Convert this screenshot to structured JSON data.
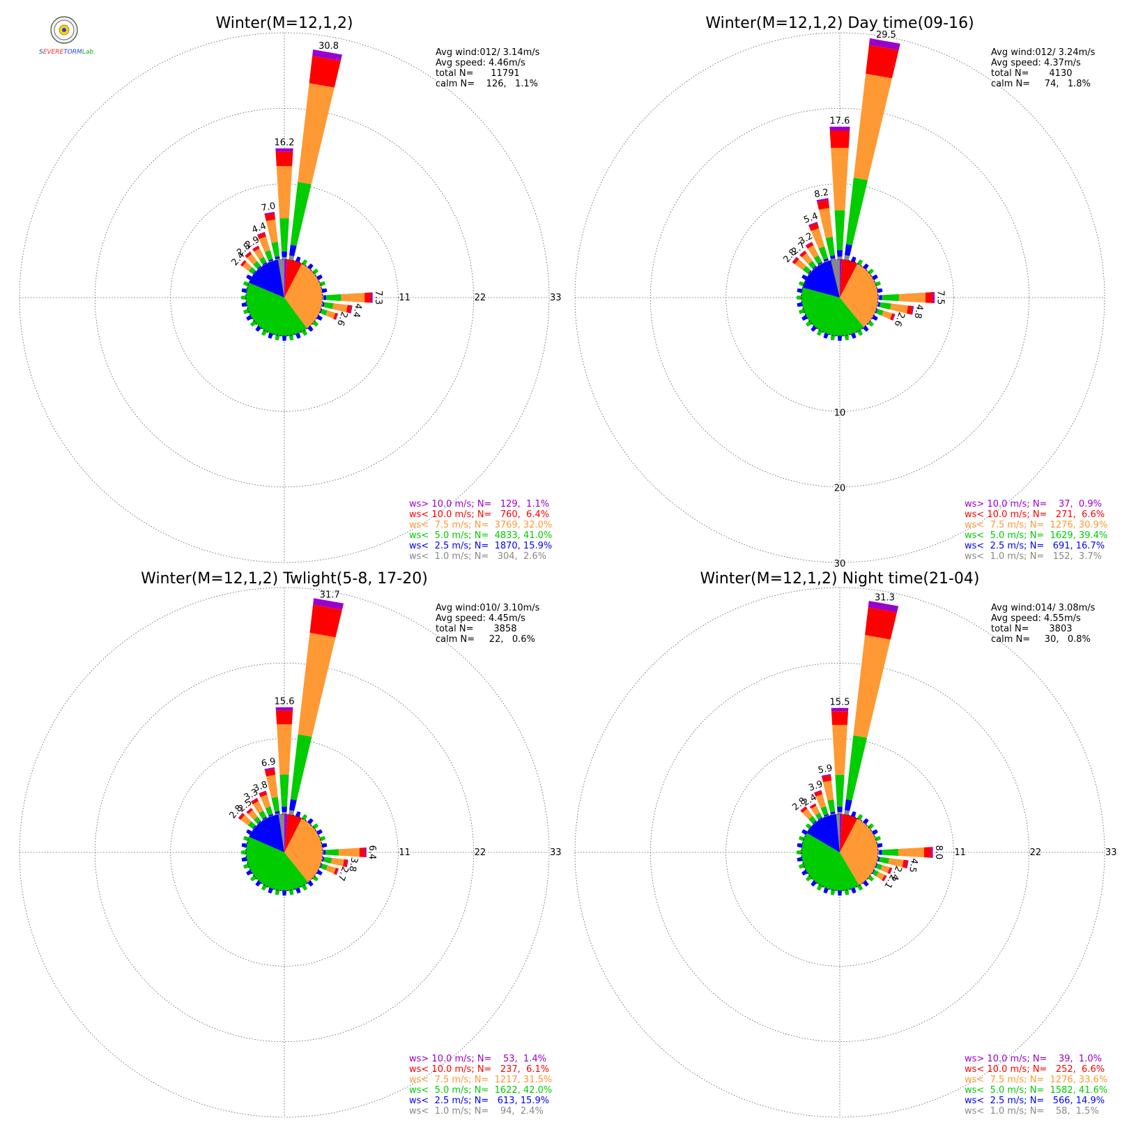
{
  "logo": {
    "parts": [
      {
        "text": "S",
        "color": "#1e3cff"
      },
      {
        "text": "EVERE",
        "color": "#ff2a1e"
      },
      {
        "text": "TORM",
        "color": "#1e3cff"
      },
      {
        "text": "Lab.",
        "color": "#18a818"
      }
    ]
  },
  "speed_colors": {
    "gt10": "#9900cc",
    "lt10": "#ff0000",
    "lt7_5": "#ff9933",
    "lt5": "#00cc00",
    "lt2_5": "#0000ff",
    "lt1": "#888888"
  },
  "chart_data": [
    {
      "type": "wind_rose",
      "title": "Winter(M=12,1,2)",
      "stats": [
        "Avg wind:012/ 3.14m/s",
        "Avg speed: 4.46m/s",
        "total N=      11791",
        "calm N=    126,   1.1%"
      ],
      "ring_labels": [
        "11",
        "22",
        "33"
      ],
      "ring_axis": "horizontal",
      "rmax": 33,
      "legend": [
        {
          "text": "ws> 10.0 m/s; N=   129,  1.1%",
          "color": "#9900cc"
        },
        {
          "text": "ws< 10.0 m/s; N=   760,  6.4%",
          "color": "#ff0000"
        },
        {
          "text": "ws<  7.5 m/s; N=  3769, 32.0%",
          "color": "#ff9933"
        },
        {
          "text": "ws<  5.0 m/s; N=  4833, 41.0%",
          "color": "#00cc00"
        },
        {
          "text": "ws<  2.5 m/s; N=  1870, 15.9%",
          "color": "#0000ff"
        },
        {
          "text": "ws<  1.0 m/s; N=   304,  2.6%",
          "color": "#888888"
        }
      ],
      "pie": [
        2.6,
        15.9,
        41.0,
        32.0,
        6.4,
        1.1
      ],
      "bars": [
        {
          "dir": 0,
          "total": 16.2,
          "label": "16.2"
        },
        {
          "dir": 10,
          "total": 30.8,
          "label": "30.8"
        },
        {
          "dir": -10,
          "total": 7.0,
          "label": "7.0"
        },
        {
          "dir": -20,
          "total": 4.4,
          "label": "4.4"
        },
        {
          "dir": -30,
          "total": 2.9,
          "label": "2.9"
        },
        {
          "dir": -40,
          "total": 2.8,
          "label": "2.8"
        },
        {
          "dir": -50,
          "total": 2.4,
          "label": "2.4"
        },
        {
          "dir": 90,
          "total": 7.3,
          "label": "7.3"
        },
        {
          "dir": 100,
          "total": 4.4,
          "label": "4.4"
        },
        {
          "dir": 110,
          "total": 2.6,
          "label": "2.6"
        }
      ]
    },
    {
      "type": "wind_rose",
      "title": "Winter(M=12,1,2) Day time(09-16)",
      "stats": [
        "Avg wind:012/ 3.24m/s",
        "Avg speed: 4.37m/s",
        "total N=       4130",
        "calm N=     74,   1.8%"
      ],
      "ring_labels": [
        "10",
        "20",
        "30"
      ],
      "ring_axis": "vertical",
      "rmax": 30,
      "legend": [
        {
          "text": "ws> 10.0 m/s; N=    37,  0.9%",
          "color": "#9900cc"
        },
        {
          "text": "ws< 10.0 m/s; N=   271,  6.6%",
          "color": "#ff0000"
        },
        {
          "text": "ws<  7.5 m/s; N=  1276, 30.9%",
          "color": "#ff9933"
        },
        {
          "text": "ws<  5.0 m/s; N=  1629, 39.4%",
          "color": "#00cc00"
        },
        {
          "text": "ws<  2.5 m/s; N=   691, 16.7%",
          "color": "#0000ff"
        },
        {
          "text": "ws<  1.0 m/s; N=   152,  3.7%",
          "color": "#888888"
        }
      ],
      "pie": [
        3.7,
        16.7,
        39.4,
        30.9,
        6.6,
        0.9
      ],
      "bars": [
        {
          "dir": 0,
          "total": 17.6,
          "label": "17.6"
        },
        {
          "dir": 10,
          "total": 29.5,
          "label": "29.5"
        },
        {
          "dir": -10,
          "total": 8.2,
          "label": "8.2"
        },
        {
          "dir": -20,
          "total": 5.4,
          "label": "5.4"
        },
        {
          "dir": -30,
          "total": 3.2,
          "label": "3.2"
        },
        {
          "dir": -40,
          "total": 2.7,
          "label": "2.7"
        },
        {
          "dir": -50,
          "total": 2.8,
          "label": "2.8"
        },
        {
          "dir": 90,
          "total": 7.5,
          "label": "7.5"
        },
        {
          "dir": 100,
          "total": 4.8,
          "label": "4.8"
        },
        {
          "dir": 110,
          "total": 2.6,
          "label": "2.6"
        }
      ]
    },
    {
      "type": "wind_rose",
      "title": "Winter(M=12,1,2) Twlight(5-8, 17-20)",
      "stats": [
        "Avg wind:010/ 3.10m/s",
        "Avg speed: 4.45m/s",
        "total N=       3858",
        "calm N=     22,   0.6%"
      ],
      "ring_labels": [
        "11",
        "22",
        "33"
      ],
      "ring_axis": "horizontal",
      "rmax": 33,
      "legend": [
        {
          "text": "ws> 10.0 m/s; N=    53,  1.4%",
          "color": "#9900cc"
        },
        {
          "text": "ws< 10.0 m/s; N=   237,  6.1%",
          "color": "#ff0000"
        },
        {
          "text": "ws<  7.5 m/s; N=  1217, 31.5%",
          "color": "#ff9933"
        },
        {
          "text": "ws<  5.0 m/s; N=  1622, 42.0%",
          "color": "#00cc00"
        },
        {
          "text": "ws<  2.5 m/s; N=   613, 15.9%",
          "color": "#0000ff"
        },
        {
          "text": "ws<  1.0 m/s; N=    94,  2.4%",
          "color": "#888888"
        }
      ],
      "pie": [
        2.4,
        15.9,
        42.0,
        31.5,
        6.1,
        1.4
      ],
      "bars": [
        {
          "dir": 0,
          "total": 15.6,
          "label": "15.6"
        },
        {
          "dir": 10,
          "total": 31.7,
          "label": "31.7"
        },
        {
          "dir": -10,
          "total": 6.9,
          "label": "6.9"
        },
        {
          "dir": -20,
          "total": 3.8,
          "label": "3.8"
        },
        {
          "dir": -30,
          "total": 3.3,
          "label": "3.3"
        },
        {
          "dir": -40,
          "total": 2.5,
          "label": "2.5"
        },
        {
          "dir": -50,
          "total": 2.8,
          "label": "2.8"
        },
        {
          "dir": 90,
          "total": 6.4,
          "label": "6.4"
        },
        {
          "dir": 100,
          "total": 3.8,
          "label": "3.8"
        },
        {
          "dir": 110,
          "total": 2.7,
          "label": "2.7"
        }
      ]
    },
    {
      "type": "wind_rose",
      "title": "Winter(M=12,1,2) Night time(21-04)",
      "stats": [
        "Avg wind:014/ 3.08m/s",
        "Avg speed: 4.55m/s",
        "total N=       3803",
        "calm N=     30,   0.8%"
      ],
      "ring_labels": [
        "11",
        "22",
        "33"
      ],
      "ring_axis": "horizontal",
      "rmax": 33,
      "legend": [
        {
          "text": "ws> 10.0 m/s; N=    39,  1.0%",
          "color": "#9900cc"
        },
        {
          "text": "ws< 10.0 m/s; N=   252,  6.6%",
          "color": "#ff0000"
        },
        {
          "text": "ws<  7.5 m/s; N=  1276, 33.6%",
          "color": "#ff9933"
        },
        {
          "text": "ws<  5.0 m/s; N=  1582, 41.6%",
          "color": "#00cc00"
        },
        {
          "text": "ws<  2.5 m/s; N=   566, 14.9%",
          "color": "#0000ff"
        },
        {
          "text": "ws<  1.0 m/s; N=    58,  1.5%",
          "color": "#888888"
        }
      ],
      "pie": [
        1.5,
        14.9,
        41.6,
        33.6,
        6.6,
        1.0
      ],
      "bars": [
        {
          "dir": 0,
          "total": 15.5,
          "label": "15.5"
        },
        {
          "dir": 10,
          "total": 31.3,
          "label": "31.3"
        },
        {
          "dir": -10,
          "total": 5.9,
          "label": "5.9"
        },
        {
          "dir": -20,
          "total": 3.9,
          "label": "3.9"
        },
        {
          "dir": -30,
          "total": 2.4,
          "label": "2.4"
        },
        {
          "dir": -40,
          "total": 2.8,
          "label": "2.8"
        },
        {
          "dir": 90,
          "total": 8.0,
          "label": "8.0"
        },
        {
          "dir": 100,
          "total": 4.5,
          "label": "4.5"
        },
        {
          "dir": 110,
          "total": 2.4,
          "label": "2.4"
        },
        {
          "dir": 120,
          "total": 2.1,
          "label": "2.1"
        }
      ]
    }
  ]
}
